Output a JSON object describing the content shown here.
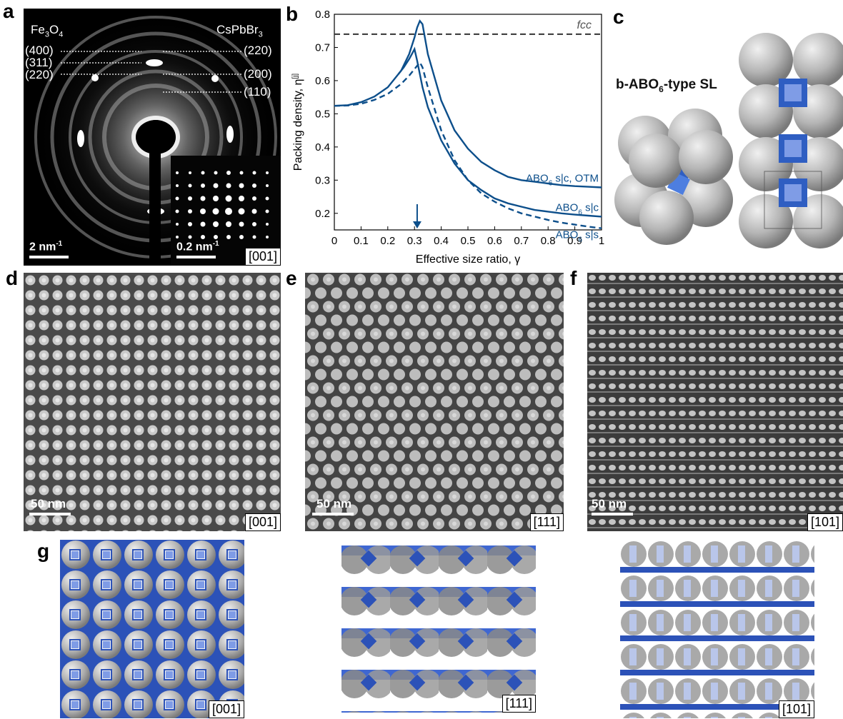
{
  "panel_labels": {
    "a": "a",
    "b": "b",
    "c": "c",
    "d": "d",
    "e": "e",
    "f": "f",
    "g": "g"
  },
  "panel_a": {
    "left_title_base": "Fe",
    "left_title_sub1": "3",
    "left_title_o": "O",
    "left_title_sub2": "4",
    "right_title_base": "CsPbBr",
    "right_title_sub": "3",
    "left_planes": [
      "(400)",
      "(311)",
      "(220)"
    ],
    "right_planes": [
      "(220)",
      "(200)",
      "(110)"
    ],
    "scale_main": "2 nm",
    "scale_main_sup": "-1",
    "scale_inset": "0.2 nm",
    "scale_inset_sup": "-1",
    "zone": "[001]"
  },
  "panel_c": {
    "label_pre": "b-ABO",
    "label_sub": "6",
    "label_post": "-type SL"
  },
  "panel_d": {
    "scale": "50 nm",
    "zone": "[001]"
  },
  "panel_e": {
    "scale": "50 nm",
    "zone": "[111]"
  },
  "panel_f": {
    "scale": "50 nm",
    "zone": "[101]"
  },
  "panel_g": {
    "zones": [
      "[001]",
      "[111]",
      "[101]"
    ]
  },
  "chart_data": {
    "type": "line",
    "xlabel": "Effective size ratio, γ",
    "ylabel": "Packing density, η",
    "ylabel_sup": "[j]",
    "xlim": [
      0,
      1
    ],
    "ylim": [
      0.15,
      0.8
    ],
    "xticks": [
      "0",
      "0.1",
      "0.2",
      "0.3",
      "0.4",
      "0.5",
      "0.6",
      "0.7",
      "0.8",
      "0.9",
      "1"
    ],
    "yticks": [
      "0.2",
      "0.3",
      "0.4",
      "0.5",
      "0.6",
      "0.7",
      "0.8"
    ],
    "reference_line": {
      "label": "fcc",
      "y": 0.74
    },
    "arrow_x": 0.31,
    "line_color": "#0d4f8b",
    "series": [
      {
        "name": "ABO6 s|c, OTM",
        "label_pre": "ABO",
        "label_sub": "6",
        "label_post": " s|c, OTM",
        "style": "solid",
        "x": [
          0,
          0.05,
          0.1,
          0.15,
          0.2,
          0.25,
          0.28,
          0.3,
          0.31,
          0.32,
          0.33,
          0.35,
          0.4,
          0.45,
          0.5,
          0.55,
          0.6,
          0.65,
          0.7,
          0.75,
          0.8,
          0.85,
          0.9,
          0.95,
          1.0
        ],
        "y": [
          0.524,
          0.526,
          0.535,
          0.552,
          0.58,
          0.63,
          0.68,
          0.73,
          0.76,
          0.78,
          0.77,
          0.68,
          0.54,
          0.45,
          0.395,
          0.355,
          0.33,
          0.31,
          0.3,
          0.295,
          0.29,
          0.285,
          0.282,
          0.28,
          0.278
        ]
      },
      {
        "name": "ABO6 s|c",
        "label_pre": "ABO",
        "label_sub": "6",
        "label_post": " s|c",
        "style": "solid",
        "x": [
          0.24,
          0.26,
          0.28,
          0.29,
          0.3,
          0.31,
          0.33,
          0.35,
          0.4,
          0.45,
          0.5,
          0.55,
          0.6,
          0.65,
          0.7,
          0.75,
          0.8,
          0.85,
          0.9,
          0.95,
          1.0
        ],
        "y": [
          0.62,
          0.64,
          0.665,
          0.68,
          0.695,
          0.66,
          0.58,
          0.52,
          0.42,
          0.35,
          0.3,
          0.27,
          0.245,
          0.23,
          0.22,
          0.21,
          0.205,
          0.2,
          0.196,
          0.193,
          0.19
        ]
      },
      {
        "name": "ABO6 s|s",
        "label_pre": "ABO",
        "label_sub": "6",
        "label_post": " s|s",
        "style": "dashed",
        "x": [
          0,
          0.05,
          0.1,
          0.15,
          0.2,
          0.25,
          0.28,
          0.3,
          0.32,
          0.33,
          0.35,
          0.4,
          0.45,
          0.5,
          0.55,
          0.6,
          0.65,
          0.7,
          0.75,
          0.8,
          0.85,
          0.9,
          0.95,
          1.0
        ],
        "y": [
          0.524,
          0.525,
          0.53,
          0.542,
          0.56,
          0.59,
          0.615,
          0.635,
          0.655,
          0.64,
          0.58,
          0.45,
          0.36,
          0.3,
          0.26,
          0.235,
          0.215,
          0.2,
          0.19,
          0.18,
          0.172,
          0.166,
          0.16,
          0.155
        ]
      }
    ]
  }
}
